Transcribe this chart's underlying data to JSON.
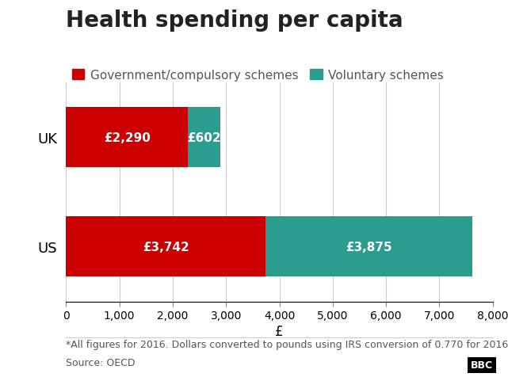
{
  "title": "Health spending per capita",
  "categories_ordered": [
    "UK",
    "US"
  ],
  "gov_values": {
    "UK": 2290,
    "US": 3742
  },
  "vol_values": {
    "UK": 602,
    "US": 3875
  },
  "gov_color": "#cc0000",
  "vol_color": "#2a9d8f",
  "gov_label": "Government/compulsory schemes",
  "vol_label": "Voluntary schemes",
  "xlabel": "£",
  "xlim": [
    0,
    8000
  ],
  "xticks": [
    0,
    1000,
    2000,
    3000,
    4000,
    5000,
    6000,
    7000,
    8000
  ],
  "xtick_labels": [
    "0",
    "1,000",
    "2,000",
    "3,000",
    "4,000",
    "5,000",
    "6,000",
    "7,000",
    "8,000"
  ],
  "footnote": "*All figures for 2016. Dollars converted to pounds using IRS conversion of 0.770 for 2016",
  "source": "Source: OECD",
  "bbc_text": "BBC",
  "background_color": "#ffffff",
  "bar_labels": {
    "UK_gov": "£2,290",
    "UK_vol": "£602",
    "US_gov": "£3,742",
    "US_vol": "£3,875"
  },
  "title_fontsize": 20,
  "legend_fontsize": 11,
  "label_fontsize": 11,
  "tick_fontsize": 10,
  "footnote_fontsize": 9,
  "source_fontsize": 9,
  "bar_height": 0.55
}
